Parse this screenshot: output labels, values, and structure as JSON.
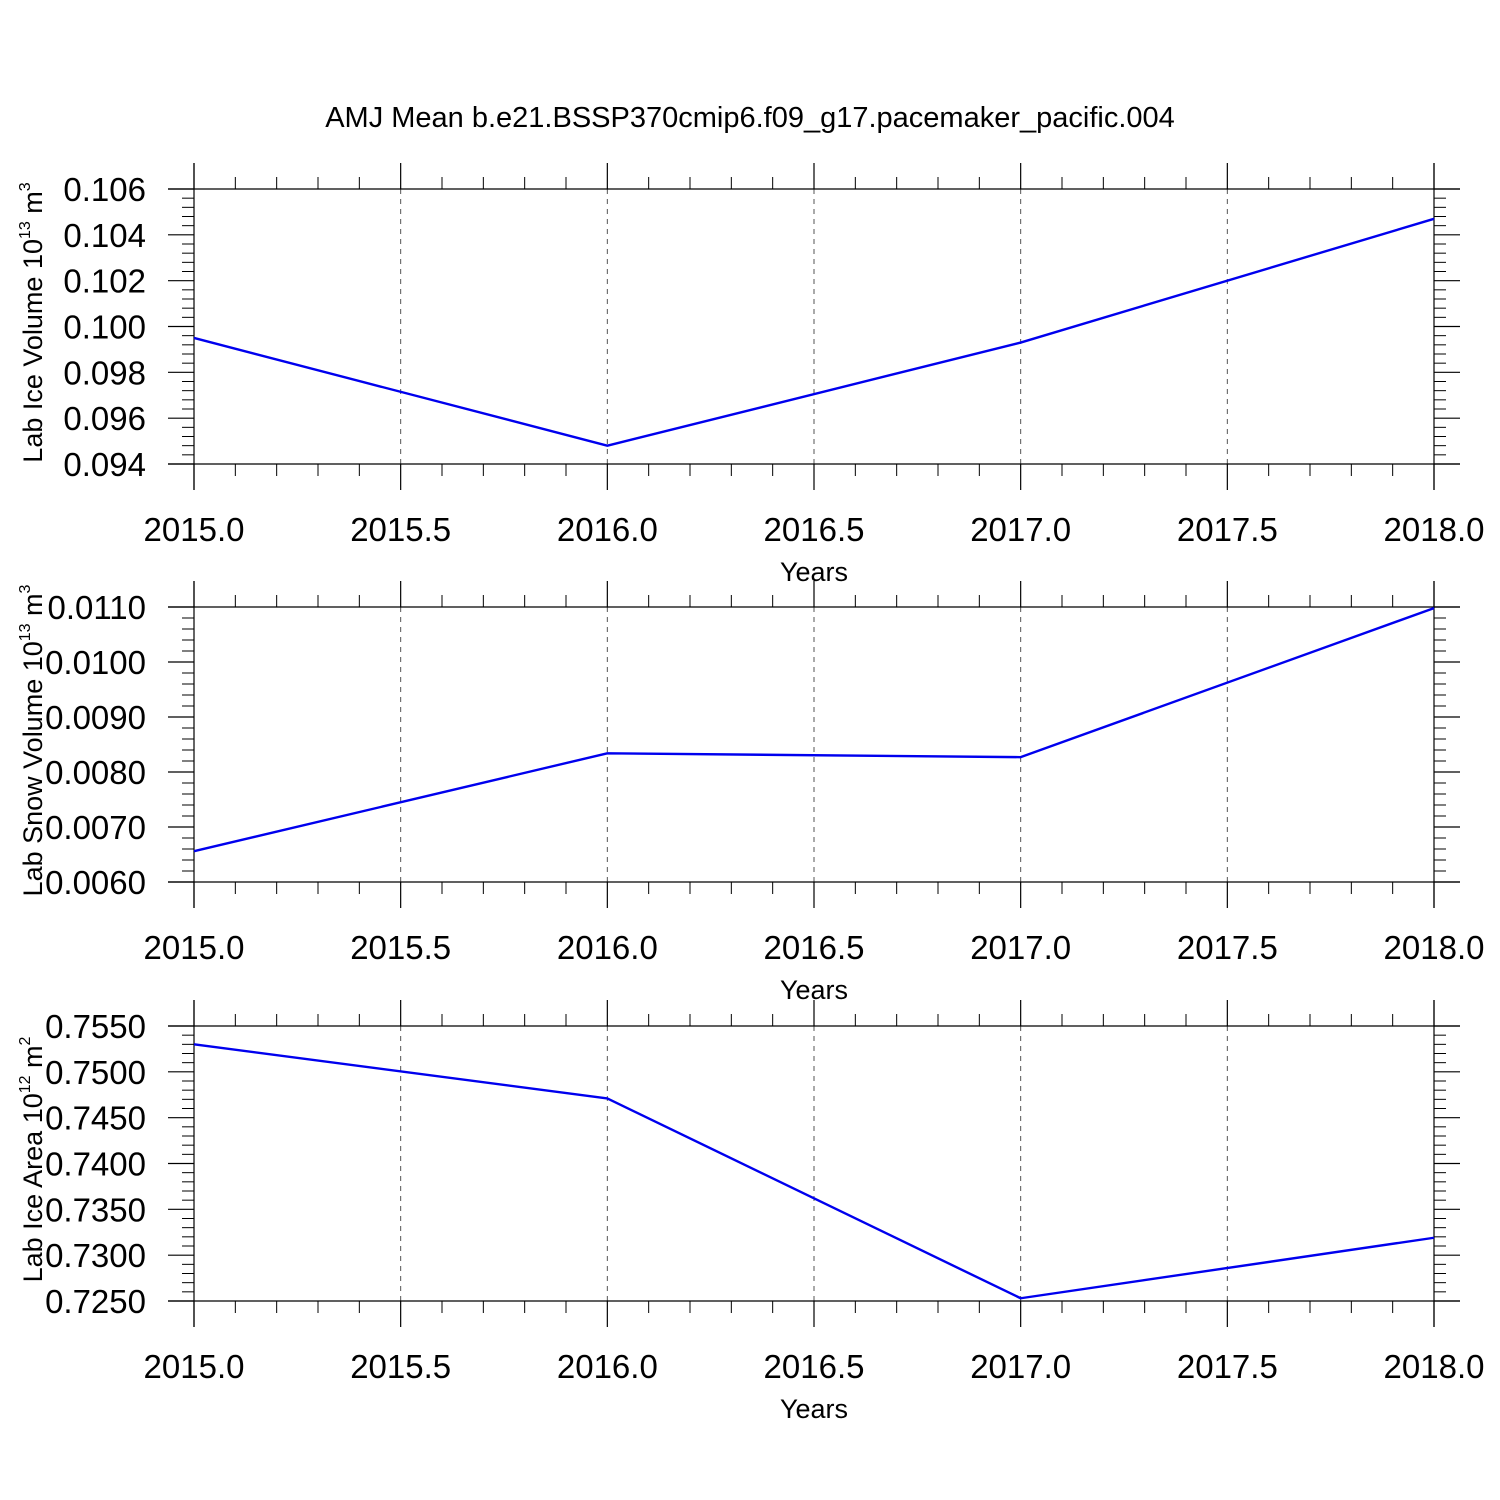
{
  "title": "AMJ Mean b.e21.BSSP370cmip6.f09_g17.pacemaker_pacific.004",
  "colors": {
    "line": "#0000ee",
    "axis": "#000000",
    "grid": "#555555"
  },
  "chart_data": [
    {
      "type": "line",
      "title": "AMJ Mean b.e21.BSSP370cmip6.f09_g17.pacemaker_pacific.004",
      "xlabel": "Years",
      "ylabel": {
        "text": "Lab Ice Volume 10",
        "exp": "13",
        "unit": " m",
        "unit_exp": "3"
      },
      "xlim": [
        2015.0,
        2018.0
      ],
      "ylim": [
        0.094,
        0.106
      ],
      "x_ticks": [
        2015.0,
        2015.5,
        2016.0,
        2016.5,
        2017.0,
        2017.5,
        2018.0
      ],
      "x_tick_labels": [
        "2015.0",
        "2015.5",
        "2016.0",
        "2016.5",
        "2017.0",
        "2017.5",
        "2018.0"
      ],
      "y_ticks": [
        0.094,
        0.096,
        0.098,
        0.1,
        0.102,
        0.104,
        0.106
      ],
      "y_tick_labels": [
        "0.094",
        "0.096",
        "0.098",
        "0.100",
        "0.102",
        "0.104",
        "0.106"
      ],
      "grid": "vertical dashed",
      "series": [
        {
          "x": [
            2015.0,
            2016.0,
            2017.0,
            2018.0
          ],
          "values": [
            0.0995,
            0.0948,
            0.0993,
            0.1047
          ]
        }
      ]
    },
    {
      "type": "line",
      "xlabel": "Years",
      "ylabel": {
        "text": "Lab Snow Volume 10",
        "exp": "13",
        "unit": " m",
        "unit_exp": "3"
      },
      "xlim": [
        2015.0,
        2018.0
      ],
      "ylim": [
        0.006,
        0.011
      ],
      "x_ticks": [
        2015.0,
        2015.5,
        2016.0,
        2016.5,
        2017.0,
        2017.5,
        2018.0
      ],
      "x_tick_labels": [
        "2015.0",
        "2015.5",
        "2016.0",
        "2016.5",
        "2017.0",
        "2017.5",
        "2018.0"
      ],
      "y_ticks": [
        0.006,
        0.007,
        0.008,
        0.009,
        0.01,
        0.011
      ],
      "y_tick_labels": [
        "0.0060",
        "0.0070",
        "0.0080",
        "0.0090",
        "0.0100",
        "0.0110"
      ],
      "grid": "vertical dashed",
      "series": [
        {
          "x": [
            2015.0,
            2016.0,
            2017.0,
            2018.0
          ],
          "values": [
            0.00656,
            0.00834,
            0.00827,
            0.01098
          ]
        }
      ]
    },
    {
      "type": "line",
      "xlabel": "Years",
      "ylabel": {
        "text": "Lab Ice Area 10",
        "exp": "12",
        "unit": " m",
        "unit_exp": "2"
      },
      "xlim": [
        2015.0,
        2018.0
      ],
      "ylim": [
        0.725,
        0.755
      ],
      "x_ticks": [
        2015.0,
        2015.5,
        2016.0,
        2016.5,
        2017.0,
        2017.5,
        2018.0
      ],
      "x_tick_labels": [
        "2015.0",
        "2015.5",
        "2016.0",
        "2016.5",
        "2017.0",
        "2017.5",
        "2018.0"
      ],
      "y_ticks": [
        0.725,
        0.73,
        0.735,
        0.74,
        0.745,
        0.75,
        0.755
      ],
      "y_tick_labels": [
        "0.7250",
        "0.7300",
        "0.7350",
        "0.7400",
        "0.7450",
        "0.7500",
        "0.7550"
      ],
      "grid": "vertical dashed",
      "series": [
        {
          "x": [
            2015.0,
            2016.0,
            2017.0,
            2018.0
          ],
          "values": [
            0.753,
            0.7471,
            0.7253,
            0.7319
          ]
        }
      ]
    }
  ]
}
